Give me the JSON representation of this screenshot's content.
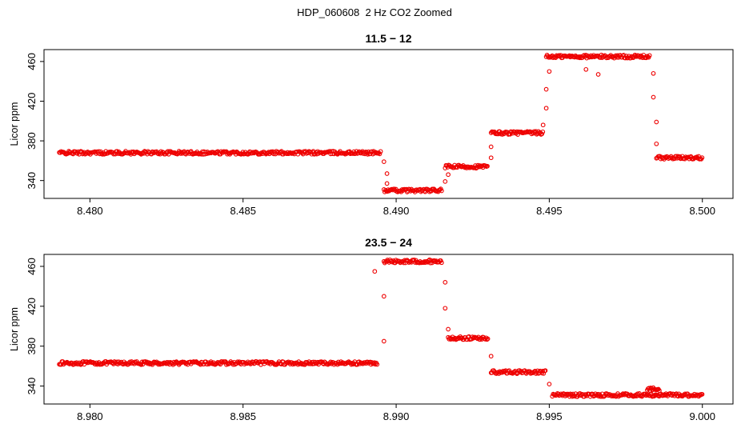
{
  "figure": {
    "title": "HDP_060608  2 Hz CO2 Zoomed",
    "background": "#ffffff",
    "point_color": "#ee0000",
    "axis_color": "#000000"
  },
  "chart_data": [
    {
      "type": "scatter",
      "title": "11.5 − 12",
      "xlabel": "",
      "ylabel": "Licor ppm",
      "xlim": [
        8.4785,
        8.501
      ],
      "ylim": [
        322,
        472
      ],
      "grid": false,
      "legend": "none",
      "marker": "open-circle",
      "xticks": [
        8.48,
        8.485,
        8.49,
        8.495,
        8.5
      ],
      "xtick_labels": [
        "8.480",
        "8.485",
        "8.490",
        "8.495",
        "8.500"
      ],
      "yticks": [
        340,
        380,
        420,
        460
      ],
      "ytick_labels": [
        "340",
        "380",
        "420",
        "460"
      ],
      "segments": [
        {
          "x_start": 8.479,
          "x_end": 8.4895,
          "y": 368
        },
        {
          "x_start": 8.4896,
          "x_end": 8.4915,
          "y": 330
        },
        {
          "x_start": 8.4916,
          "x_end": 8.493,
          "y": 354
        },
        {
          "x_start": 8.4931,
          "x_end": 8.4948,
          "y": 388
        },
        {
          "x_start": 8.4949,
          "x_end": 8.4983,
          "y": 465
        },
        {
          "x_start": 8.4985,
          "x_end": 8.5,
          "y": 363
        }
      ],
      "outliers": [
        {
          "x": 8.4896,
          "y": 359
        },
        {
          "x": 8.4897,
          "y": 347
        },
        {
          "x": 8.4897,
          "y": 337
        },
        {
          "x": 8.4916,
          "y": 339
        },
        {
          "x": 8.4917,
          "y": 346
        },
        {
          "x": 8.4931,
          "y": 363
        },
        {
          "x": 8.4931,
          "y": 374
        },
        {
          "x": 8.4948,
          "y": 396
        },
        {
          "x": 8.4949,
          "y": 413
        },
        {
          "x": 8.4949,
          "y": 432
        },
        {
          "x": 8.495,
          "y": 450
        },
        {
          "x": 8.4962,
          "y": 452
        },
        {
          "x": 8.4966,
          "y": 447
        },
        {
          "x": 8.4984,
          "y": 448
        },
        {
          "x": 8.4984,
          "y": 424
        },
        {
          "x": 8.4985,
          "y": 399
        },
        {
          "x": 8.4985,
          "y": 377
        }
      ]
    },
    {
      "type": "scatter",
      "title": "23.5 − 24",
      "xlabel": "",
      "ylabel": "Licor ppm",
      "xlim": [
        8.9785,
        9.001
      ],
      "ylim": [
        322,
        472
      ],
      "grid": false,
      "legend": "none",
      "marker": "open-circle",
      "xticks": [
        8.98,
        8.985,
        8.99,
        8.995,
        9.0
      ],
      "xtick_labels": [
        "8.980",
        "8.985",
        "8.990",
        "8.995",
        "9.000"
      ],
      "yticks": [
        340,
        380,
        420,
        460
      ],
      "ytick_labels": [
        "340",
        "380",
        "420",
        "460"
      ],
      "segments": [
        {
          "x_start": 8.979,
          "x_end": 8.9894,
          "y": 363
        },
        {
          "x_start": 8.9896,
          "x_end": 8.9915,
          "y": 465
        },
        {
          "x_start": 8.9917,
          "x_end": 8.993,
          "y": 388
        },
        {
          "x_start": 8.9931,
          "x_end": 8.9949,
          "y": 354
        },
        {
          "x_start": 8.9951,
          "x_end": 9.0,
          "y": 331
        },
        {
          "x_start": 8.9982,
          "x_end": 8.9986,
          "y": 337
        }
      ],
      "outliers": [
        {
          "x": 8.9893,
          "y": 455
        },
        {
          "x": 8.9896,
          "y": 430
        },
        {
          "x": 8.9896,
          "y": 385
        },
        {
          "x": 8.9916,
          "y": 444
        },
        {
          "x": 8.9916,
          "y": 418
        },
        {
          "x": 8.9917,
          "y": 397
        },
        {
          "x": 8.9931,
          "y": 370
        },
        {
          "x": 8.995,
          "y": 342
        }
      ]
    }
  ]
}
